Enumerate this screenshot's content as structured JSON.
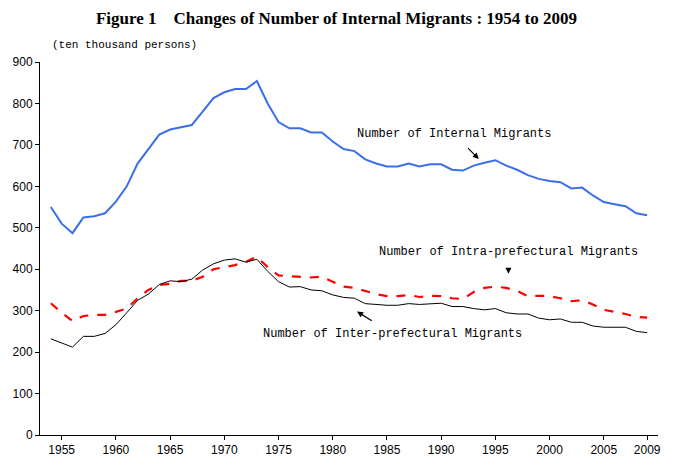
{
  "chart_data": {
    "type": "line",
    "title": "Figure 1　Changes of Number of Internal Migrants : 1954 to 2009",
    "ylabel": "(ten thousand persons)",
    "x": [
      1954,
      1955,
      1956,
      1957,
      1958,
      1959,
      1960,
      1961,
      1962,
      1963,
      1964,
      1965,
      1966,
      1967,
      1968,
      1969,
      1970,
      1971,
      1972,
      1973,
      1974,
      1975,
      1976,
      1977,
      1978,
      1979,
      1980,
      1981,
      1982,
      1983,
      1984,
      1985,
      1986,
      1987,
      1988,
      1989,
      1990,
      1991,
      1992,
      1993,
      1994,
      1995,
      1996,
      1997,
      1998,
      1999,
      2000,
      2001,
      2002,
      2003,
      2004,
      2005,
      2006,
      2007,
      2008,
      2009
    ],
    "series": [
      {
        "name": "Number of Internal Migrants",
        "color": "#3a6fe8",
        "line_style": "solid",
        "values": [
          550,
          510,
          487,
          525,
          528,
          535,
          563,
          600,
          655,
          690,
          725,
          737,
          742,
          748,
          780,
          813,
          827,
          835,
          835,
          854,
          800,
          755,
          740,
          740,
          730,
          730,
          708,
          690,
          685,
          665,
          655,
          648,
          648,
          655,
          648,
          653,
          653,
          640,
          638,
          650,
          657,
          663,
          650,
          640,
          627,
          618,
          613,
          610,
          595,
          597,
          578,
          562,
          557,
          552,
          535,
          530
        ]
      },
      {
        "name": "Number of Intra-prefectural Migrants",
        "color": "#ff0000",
        "line_style": "dashed",
        "values": [
          318,
          295,
          275,
          287,
          290,
          290,
          297,
          305,
          330,
          350,
          362,
          365,
          372,
          372,
          382,
          400,
          405,
          410,
          418,
          430,
          405,
          385,
          383,
          382,
          380,
          382,
          370,
          358,
          355,
          348,
          340,
          335,
          335,
          338,
          333,
          336,
          335,
          330,
          328,
          345,
          355,
          358,
          355,
          348,
          335,
          336,
          335,
          330,
          323,
          325,
          315,
          302,
          297,
          292,
          285,
          283
        ]
      },
      {
        "name": "Number of Inter-prefectural Migrants",
        "color": "#000000",
        "line_style": "solid",
        "values": [
          232,
          222,
          212,
          238,
          238,
          245,
          266,
          295,
          325,
          340,
          363,
          372,
          370,
          376,
          398,
          413,
          422,
          425,
          417,
          424,
          395,
          370,
          357,
          358,
          350,
          348,
          338,
          332,
          330,
          317,
          315,
          313,
          313,
          317,
          315,
          317,
          318,
          310,
          310,
          305,
          302,
          305,
          295,
          292,
          292,
          282,
          278,
          280,
          272,
          272,
          263,
          260,
          260,
          260,
          250,
          247
        ]
      }
    ],
    "xlim": [
      1953,
      2010
    ],
    "xticks": [
      1955,
      1960,
      1965,
      1970,
      1975,
      1980,
      1985,
      1990,
      1995,
      2000,
      2005,
      2009
    ],
    "ylim": [
      0,
      900
    ],
    "yticks": [
      0,
      100,
      200,
      300,
      400,
      500,
      600,
      700,
      800,
      900
    ],
    "grid": false
  }
}
